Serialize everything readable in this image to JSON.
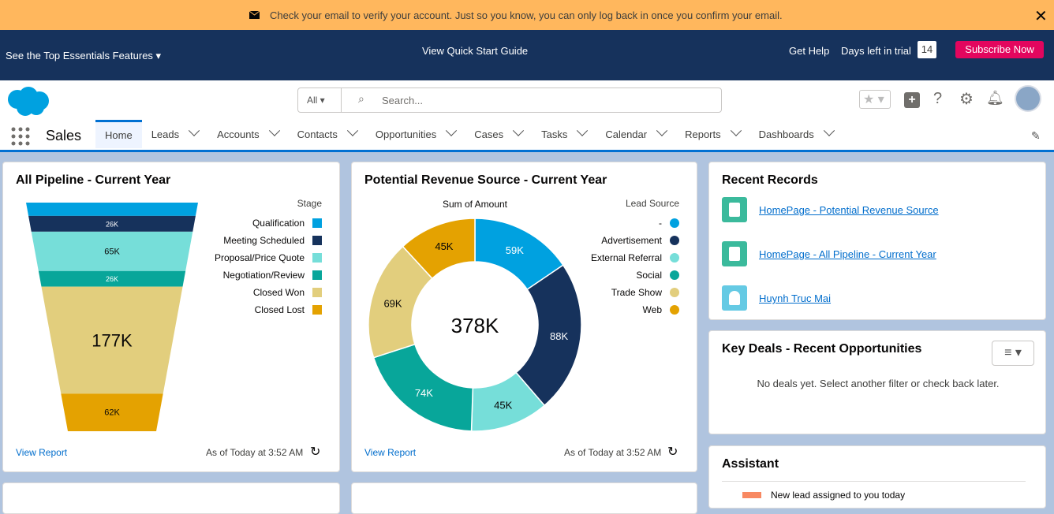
{
  "banner": {
    "message": "Check your email to verify your account. Just so you know, you can only log back in once you confirm your email."
  },
  "top_bar": {
    "features": "See the Top Essentials Features",
    "guide": "View Quick Start Guide",
    "help": "Get Help",
    "trial_label": "Days left in trial",
    "trial_days": 14,
    "subscribe": "Subscribe Now"
  },
  "header": {
    "search_scope": "All",
    "search_placeholder": "Search..."
  },
  "nav": {
    "app": "Sales",
    "tabs": [
      "Home",
      "Leads",
      "Accounts",
      "Contacts",
      "Opportunities",
      "Cases",
      "Tasks",
      "Calendar",
      "Reports",
      "Dashboards"
    ]
  },
  "pipeline": {
    "title": "All Pipeline - Current Year",
    "view_report": "View Report",
    "as_of": "As of Today at 3:52 AM",
    "chart_data": {
      "type": "funnel",
      "legend_title": "Stage",
      "categories": [
        "Qualification",
        "Meeting Scheduled",
        "Proposal/Price Quote",
        "Negotiation/Review",
        "Closed Won",
        "Closed Lost"
      ],
      "values": [
        22000,
        26000,
        65000,
        26000,
        177000,
        62000
      ],
      "value_labels": [
        null,
        "26K",
        "65K",
        "26K",
        "177K",
        "62K"
      ],
      "colors": [
        "#00a1e0",
        "#16325c",
        "#76ded9",
        "#08a69a",
        "#e2ce7d",
        "#e4a201"
      ]
    }
  },
  "revenue": {
    "title": "Potential Revenue Source - Current Year",
    "view_report": "View Report",
    "as_of": "As of Today at 3:52 AM",
    "chart_data": {
      "type": "donut",
      "subtitle": "Sum of Amount",
      "legend_title": "Lead Source",
      "total": 378000,
      "total_label": "378K",
      "categories": [
        "-",
        "Advertisement",
        "External Referral",
        "Social",
        "Trade Show",
        "Web"
      ],
      "values": [
        59000,
        88000,
        45000,
        74000,
        69000,
        45000
      ],
      "value_labels": [
        "59K",
        "88K",
        "45K",
        "74K",
        "69K",
        "45K"
      ],
      "colors": [
        "#00a1e0",
        "#16325c",
        "#76ded9",
        "#08a69a",
        "#e2ce7d",
        "#e4a201"
      ]
    }
  },
  "recent_records": {
    "title": "Recent Records",
    "items": [
      "HomePage - Potential Revenue Source",
      "HomePage - All Pipeline - Current Year",
      "Huynh Truc Mai"
    ]
  },
  "key_deals": {
    "title": "Key Deals - Recent Opportunities",
    "empty": "No deals yet. Select another filter or check back later."
  },
  "assistant": {
    "title": "Assistant",
    "items": [
      "New lead assigned to you today"
    ]
  }
}
